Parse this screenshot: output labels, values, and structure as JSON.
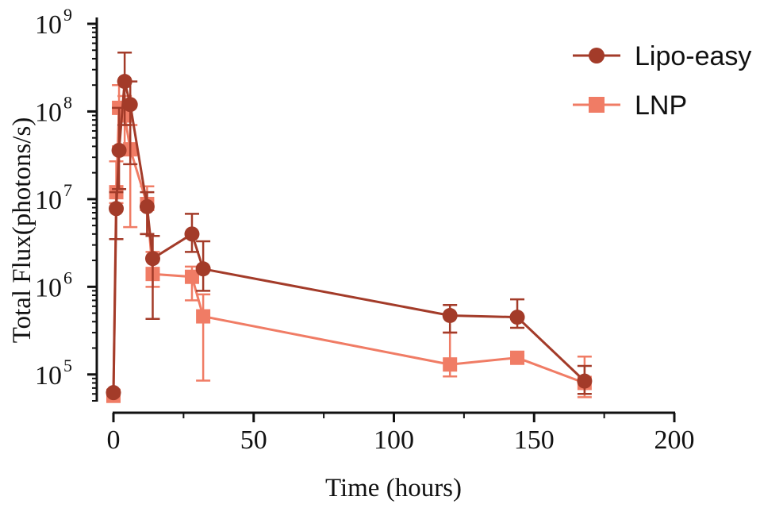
{
  "chart_data": {
    "type": "line",
    "xlabel": "Time (hours)",
    "ylabel": "Total Flux(photons/s)",
    "xlim": [
      0,
      200
    ],
    "ylim": [
      50000,
      1000000000
    ],
    "yscale": "log",
    "x_ticks": [
      "0",
      "50",
      "100",
      "150",
      "200"
    ],
    "y_ticks": [
      {
        "base": "10",
        "exp": "5"
      },
      {
        "base": "10",
        "exp": "6"
      },
      {
        "base": "10",
        "exp": "7"
      },
      {
        "base": "10",
        "exp": "8"
      },
      {
        "base": "10",
        "exp": "9"
      }
    ],
    "legend_position": "top-right",
    "series": [
      {
        "name": "Lipo-easy",
        "color": "#a33b29",
        "marker": "circle",
        "points": [
          {
            "x": 0,
            "y": 62000,
            "lo": 62000,
            "hi": 62000
          },
          {
            "x": 1,
            "y": 7800000,
            "lo": 3500000,
            "hi": 12000000
          },
          {
            "x": 2,
            "y": 36000000,
            "lo": 13000000,
            "hi": 110000000
          },
          {
            "x": 4,
            "y": 220000000,
            "lo": 70000000,
            "hi": 470000000
          },
          {
            "x": 6,
            "y": 120000000,
            "lo": 25000000,
            "hi": 220000000
          },
          {
            "x": 12,
            "y": 8200000,
            "lo": 4000000,
            "hi": 12000000
          },
          {
            "x": 14,
            "y": 2100000,
            "lo": 430000,
            "hi": 3800000
          },
          {
            "x": 28,
            "y": 4000000,
            "lo": 2500000,
            "hi": 6800000
          },
          {
            "x": 32,
            "y": 1600000,
            "lo": 900000,
            "hi": 3300000
          },
          {
            "x": 120,
            "y": 470000,
            "lo": 300000,
            "hi": 620000
          },
          {
            "x": 144,
            "y": 450000,
            "lo": 340000,
            "hi": 720000
          },
          {
            "x": 168,
            "y": 84000,
            "lo": 60000,
            "hi": 125000
          }
        ]
      },
      {
        "name": "LNP",
        "color": "#f07c65",
        "marker": "square",
        "points": [
          {
            "x": 0,
            "y": 57000,
            "lo": 57000,
            "hi": 57000
          },
          {
            "x": 1,
            "y": 12000000,
            "lo": 9000000,
            "hi": 27000000
          },
          {
            "x": 2,
            "y": 110000000,
            "lo": 40000000,
            "hi": 200000000
          },
          {
            "x": 4,
            "y": 90000000,
            "lo": 40000000,
            "hi": 150000000
          },
          {
            "x": 6,
            "y": 37000000,
            "lo": 4800000,
            "hi": 70000000
          },
          {
            "x": 12,
            "y": 8800000,
            "lo": 4000000,
            "hi": 14000000
          },
          {
            "x": 14,
            "y": 1400000,
            "lo": 1000000,
            "hi": 2500000
          },
          {
            "x": 28,
            "y": 1300000,
            "lo": 700000,
            "hi": 1700000
          },
          {
            "x": 32,
            "y": 460000,
            "lo": 85000,
            "hi": 820000
          },
          {
            "x": 120,
            "y": 130000,
            "lo": 95000,
            "hi": 300000
          },
          {
            "x": 144,
            "y": 155000,
            "lo": 140000,
            "hi": 165000
          },
          {
            "x": 168,
            "y": 80000,
            "lo": 55000,
            "hi": 160000
          }
        ]
      }
    ]
  }
}
